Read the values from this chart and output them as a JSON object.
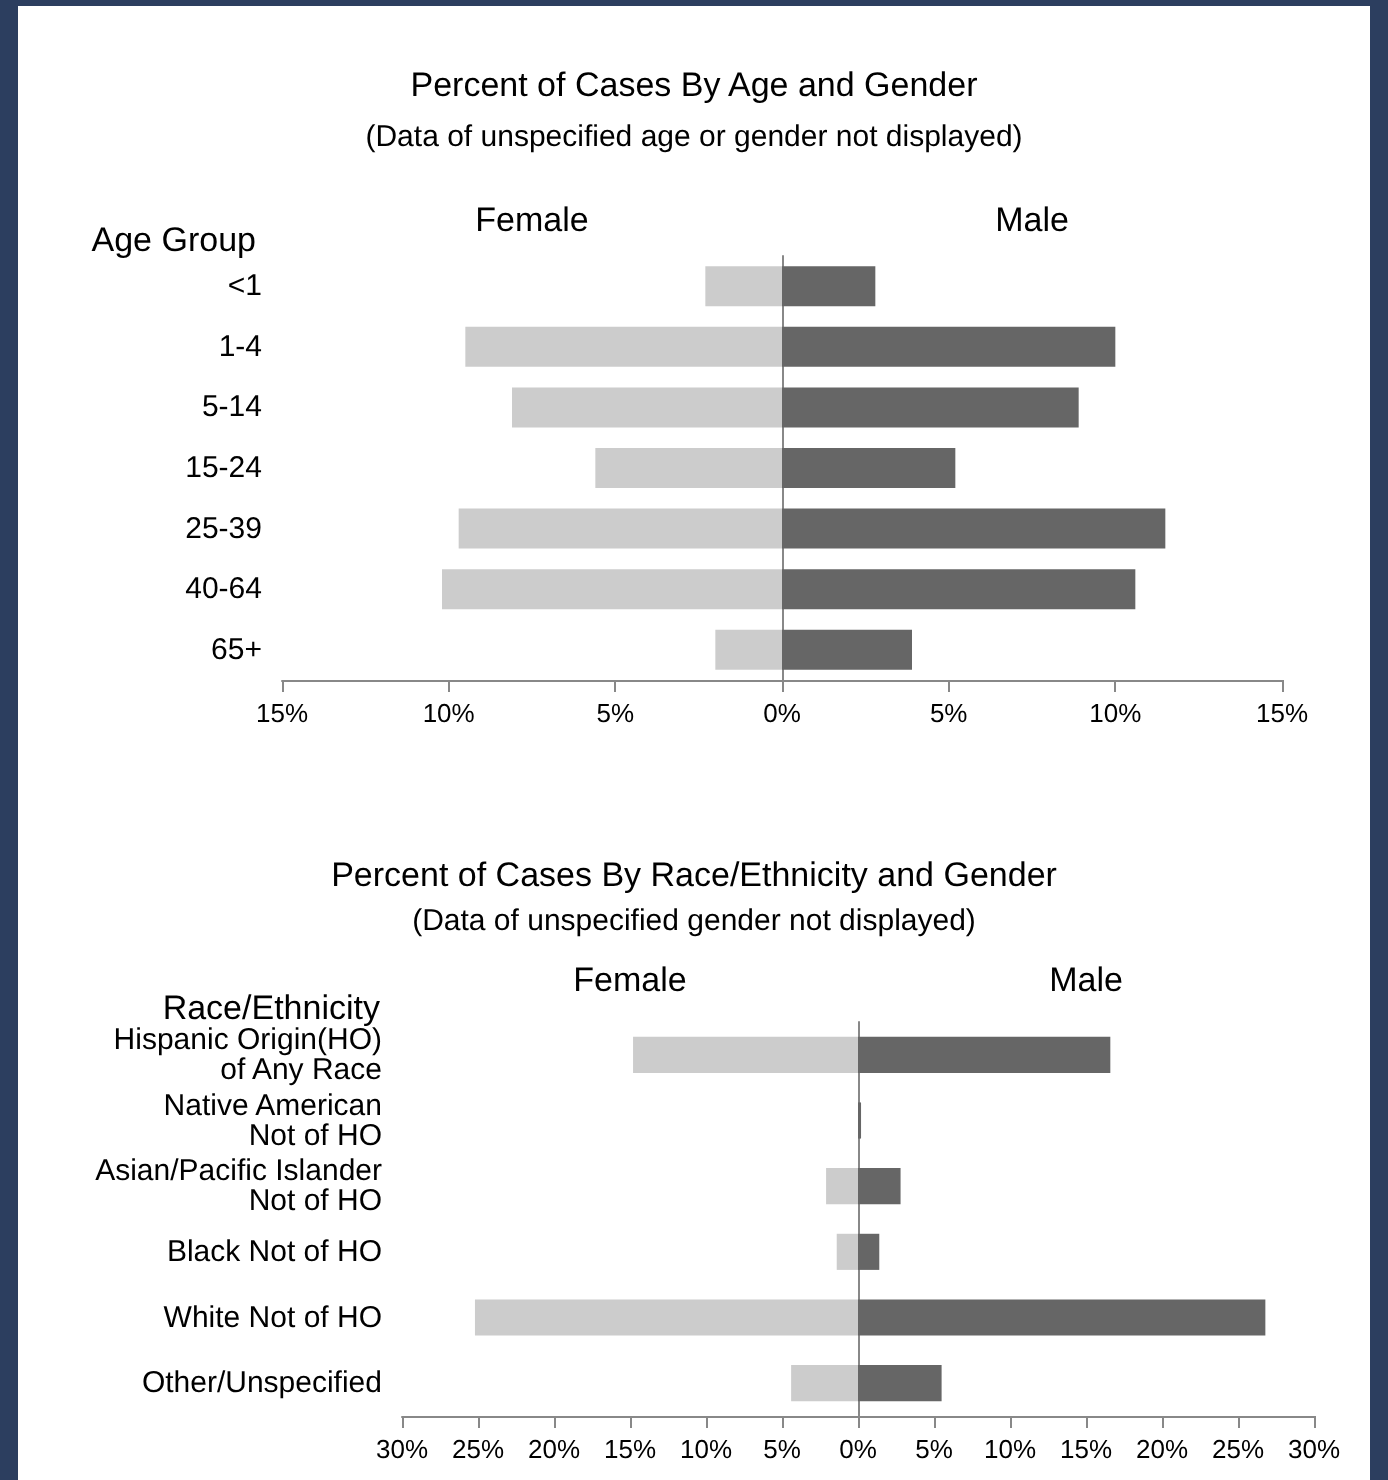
{
  "chart_data": [
    {
      "type": "bar",
      "orientation": "horizontal",
      "stacked": true,
      "title": "Percent of Cases By Age and Gender",
      "subtitle": "(Data of unspecified age or gender not displayed)",
      "ylabel": "Age Group",
      "categories": [
        "<1",
        "1-4",
        "5-14",
        "15-24",
        "25-39",
        "40-64",
        "65+"
      ],
      "series": [
        {
          "name": "Female",
          "color": "#cccccc",
          "values": [
            -2.3,
            -9.5,
            -8.1,
            -5.6,
            -9.7,
            -10.2,
            -2.0
          ]
        },
        {
          "name": "Male",
          "color": "#666666",
          "values": [
            2.8,
            10.0,
            8.9,
            5.2,
            11.5,
            10.6,
            3.9
          ]
        }
      ],
      "xlim": [
        -15,
        15
      ],
      "xticks": [
        {
          "value": -15,
          "label": "15%"
        },
        {
          "value": -10,
          "label": "10%"
        },
        {
          "value": -5,
          "label": "5%"
        },
        {
          "value": 0,
          "label": "0%"
        },
        {
          "value": 5,
          "label": "5%"
        },
        {
          "value": 10,
          "label": "10%"
        },
        {
          "value": 15,
          "label": "15%"
        }
      ]
    },
    {
      "type": "bar",
      "orientation": "horizontal",
      "stacked": true,
      "title": "Percent of Cases By Race/Ethnicity and Gender",
      "subtitle": "(Data of unspecified gender not displayed)",
      "ylabel": "Race/Ethnicity",
      "categories": [
        "Hispanic Origin(HO)\nof Any Race",
        "Native American\nNot of HO",
        "Asian/Pacific Islander\nNot of HO",
        "Black Not of HO",
        "White Not of HO",
        "Other/Unspecified"
      ],
      "series": [
        {
          "name": "Female",
          "color": "#cccccc",
          "values": [
            -14.8,
            null,
            -2.1,
            -1.4,
            -25.2,
            -4.4
          ]
        },
        {
          "name": "Male",
          "color": "#666666",
          "values": [
            16.6,
            0.2,
            2.8,
            1.4,
            26.8,
            5.5
          ]
        }
      ],
      "xlim": [
        -30,
        30
      ],
      "xticks": [
        {
          "value": -30,
          "label": "30%"
        },
        {
          "value": -25,
          "label": "25%"
        },
        {
          "value": -20,
          "label": "20%"
        },
        {
          "value": -15,
          "label": "15%"
        },
        {
          "value": -10,
          "label": "10%"
        },
        {
          "value": -5,
          "label": "5%"
        },
        {
          "value": 0,
          "label": "0%"
        },
        {
          "value": 5,
          "label": "5%"
        },
        {
          "value": 10,
          "label": "10%"
        },
        {
          "value": 15,
          "label": "15%"
        },
        {
          "value": 20,
          "label": "20%"
        },
        {
          "value": 25,
          "label": "25%"
        },
        {
          "value": 30,
          "label": "30%"
        }
      ]
    }
  ]
}
